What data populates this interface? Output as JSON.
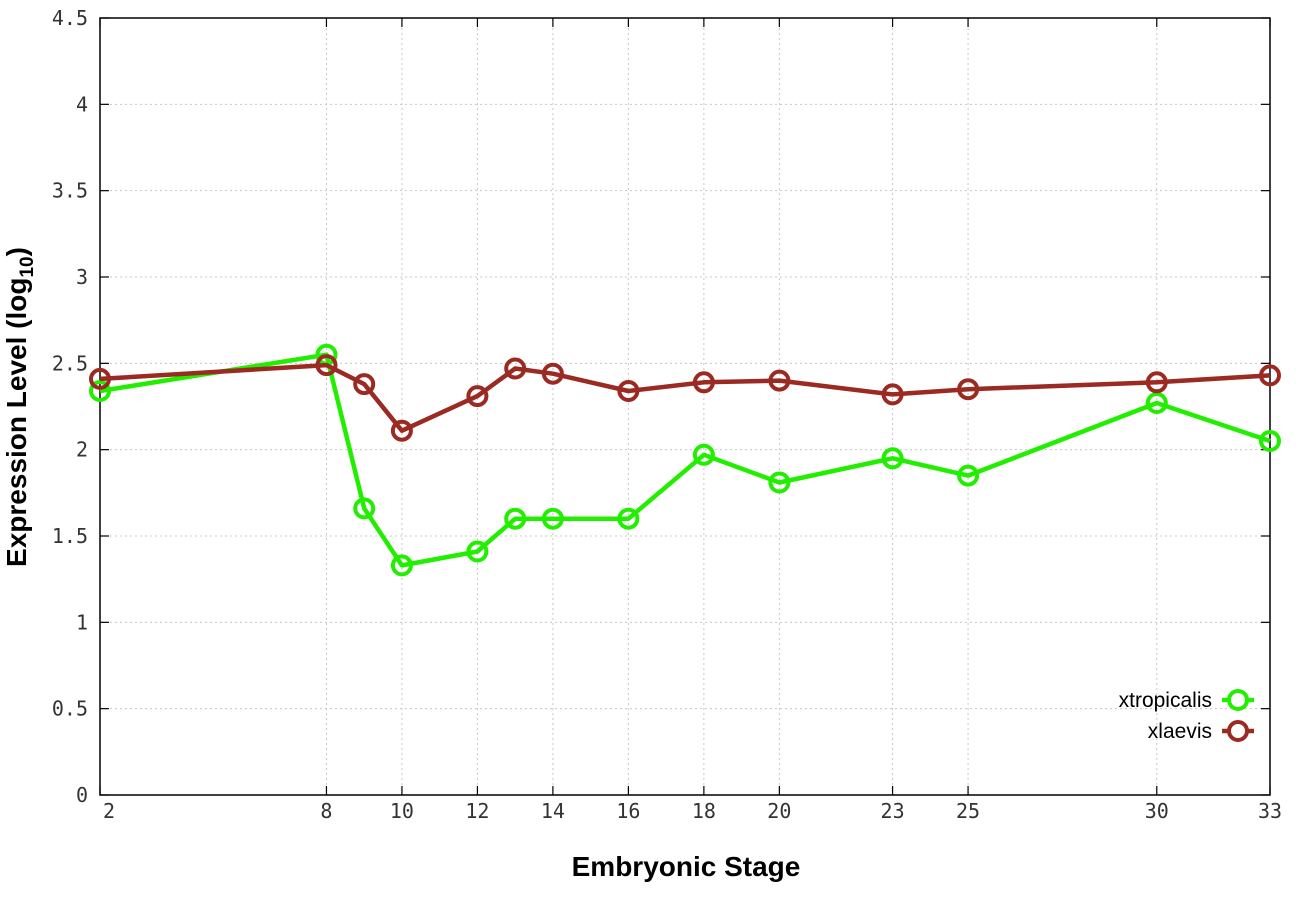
{
  "chart_data": {
    "type": "line",
    "xlabel": "Embryonic Stage",
    "ylabel_main": "Expression Level (log",
    "ylabel_sub": "10",
    "ylabel_close": ")",
    "ylim": [
      0,
      4.5
    ],
    "y_ticks": [
      "0",
      "0.5",
      "1",
      "1.5",
      "2",
      "2.5",
      "3",
      "3.5",
      "4",
      "4.5"
    ],
    "y_tick_values": [
      0,
      0.5,
      1,
      1.5,
      2,
      2.5,
      3,
      3.5,
      4,
      4.5
    ],
    "x_stages": [
      2,
      8,
      9,
      10,
      12,
      13,
      14,
      16,
      18,
      20,
      23,
      25,
      30,
      33
    ],
    "x_tick_labels": [
      "2",
      "8",
      "10",
      "12",
      "14",
      "16",
      "18",
      "20",
      "23",
      "25",
      "30",
      "33"
    ],
    "grid": true,
    "legend_position": "bottom-right",
    "series": [
      {
        "name": "xtropicalis",
        "color": "#22ee00",
        "marker": "open-circle",
        "values": [
          2.34,
          2.55,
          1.66,
          1.33,
          1.41,
          1.6,
          1.6,
          1.6,
          1.97,
          1.81,
          1.95,
          1.85,
          2.27,
          2.05
        ]
      },
      {
        "name": "xlaevis",
        "color": "#9b2a22",
        "marker": "open-circle",
        "values": [
          2.41,
          2.49,
          2.38,
          2.11,
          2.31,
          2.47,
          2.44,
          2.34,
          2.39,
          2.4,
          2.32,
          2.35,
          2.39,
          2.43
        ]
      }
    ]
  }
}
